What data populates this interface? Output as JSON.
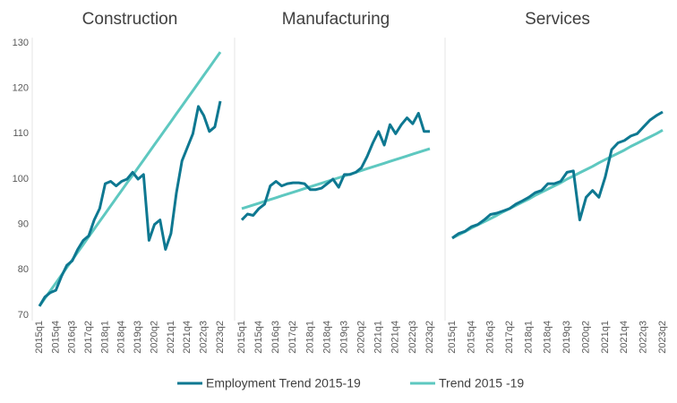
{
  "chart_data": [
    {
      "type": "line",
      "title": "Construction",
      "categories": [
        "2015q1",
        null,
        null,
        "2015q4",
        null,
        null,
        "2016q3",
        null,
        null,
        "2017q2",
        null,
        null,
        "2018q1",
        null,
        null,
        "2018q4",
        null,
        null,
        "2019q3",
        null,
        null,
        "2020q2",
        null,
        null,
        "2021q1",
        null,
        null,
        "2021q4",
        null,
        null,
        "2022q3",
        null,
        null,
        "2023q2"
      ],
      "ylim": [
        70,
        130
      ],
      "yticks": [
        70,
        80,
        90,
        100,
        110,
        120,
        130
      ],
      "series": [
        {
          "name": "Employment Trend 2015-19",
          "color": "#0e7891",
          "values": [
            72,
            74,
            75,
            75.5,
            78.5,
            81,
            82,
            84.5,
            86.5,
            87.5,
            91,
            93.5,
            99,
            99.5,
            98.5,
            99.5,
            100,
            101.5,
            100,
            101,
            86.5,
            90,
            91,
            84.5,
            88,
            97,
            104,
            107,
            110,
            116,
            114,
            110.5,
            111.5,
            117.2
          ]
        },
        {
          "name": "Trend 2015 -19",
          "color": "#5ec8c0",
          "values": [
            72,
            73.7,
            75.4,
            77.1,
            78.8,
            80.5,
            82.2,
            83.9,
            85.6,
            87.3,
            89,
            90.7,
            92.4,
            94.1,
            95.8,
            97.5,
            99.2,
            100.8,
            102.5,
            104.2,
            105.9,
            107.6,
            109.3,
            111,
            112.7,
            114.4,
            116.1,
            117.8,
            119.5,
            121.2,
            122.9,
            124.6,
            126.3,
            128
          ]
        }
      ]
    },
    {
      "type": "line",
      "title": "Manufacturing",
      "categories": [
        "2015q1",
        null,
        null,
        "2015q4",
        null,
        null,
        "2016q3",
        null,
        null,
        "2017q2",
        null,
        null,
        "2018q1",
        null,
        null,
        "2018q4",
        null,
        null,
        "2019q3",
        null,
        null,
        "2020q2",
        null,
        null,
        "2021q1",
        null,
        null,
        "2021q4",
        null,
        null,
        "2022q3",
        null,
        null,
        "2023q2"
      ],
      "ylim": [
        70,
        130
      ],
      "series": [
        {
          "name": "Employment Trend 2015-19",
          "color": "#0e7891",
          "values": [
            91,
            92.3,
            92,
            93.5,
            94.5,
            98.5,
            99.5,
            98.5,
            99,
            99.2,
            99.2,
            99,
            97.7,
            97.7,
            98,
            99,
            100,
            98.2,
            101,
            101,
            101.5,
            102.5,
            105,
            108,
            110.5,
            107.5,
            112,
            110,
            112,
            113.5,
            112.2,
            114.5,
            110.5,
            110.5
          ]
        },
        {
          "name": "Trend 2015 -19",
          "color": "#5ec8c0",
          "values": [
            93.5,
            93.9,
            94.3,
            94.7,
            95.1,
            95.5,
            95.9,
            96.3,
            96.7,
            97.1,
            97.5,
            97.9,
            98.3,
            98.7,
            99.1,
            99.5,
            99.9,
            100.3,
            100.7,
            101.1,
            101.5,
            101.9,
            102.3,
            102.7,
            103.1,
            103.5,
            103.9,
            104.3,
            104.7,
            105.1,
            105.5,
            105.9,
            106.3,
            106.7
          ]
        }
      ]
    },
    {
      "type": "line",
      "title": "Services",
      "categories": [
        "2015q1",
        null,
        null,
        "2015q4",
        null,
        null,
        "2016q3",
        null,
        null,
        "2017q2",
        null,
        null,
        "2018q1",
        null,
        null,
        "2018q4",
        null,
        null,
        "2019q3",
        null,
        null,
        "2020q2",
        null,
        null,
        "2021q1",
        null,
        null,
        "2021q4",
        null,
        null,
        "2022q3",
        null,
        null,
        "2023q2"
      ],
      "ylim": [
        70,
        130
      ],
      "series": [
        {
          "name": "Employment Trend 2015-19",
          "color": "#0e7891",
          "values": [
            87,
            88,
            88.5,
            89.5,
            90,
            91,
            92.2,
            92.5,
            93,
            93.5,
            94.5,
            95.2,
            96,
            97,
            97.5,
            99,
            99,
            99.5,
            101.5,
            101.8,
            91,
            96,
            97.5,
            96,
            100.5,
            106.5,
            108,
            108.5,
            109.5,
            110,
            111.5,
            113,
            114,
            114.8
          ]
        },
        {
          "name": "Trend 2015 -19",
          "color": "#5ec8c0",
          "values": [
            87,
            87.7,
            88.4,
            89.2,
            89.9,
            90.6,
            91.3,
            92,
            92.8,
            93.5,
            94.2,
            94.9,
            95.6,
            96.4,
            97.1,
            97.8,
            98.5,
            99.2,
            100,
            100.7,
            101.4,
            102.1,
            102.8,
            103.6,
            104.3,
            105,
            105.7,
            106.4,
            107.2,
            107.9,
            108.6,
            109.3,
            110,
            110.8
          ]
        }
      ]
    }
  ]
}
